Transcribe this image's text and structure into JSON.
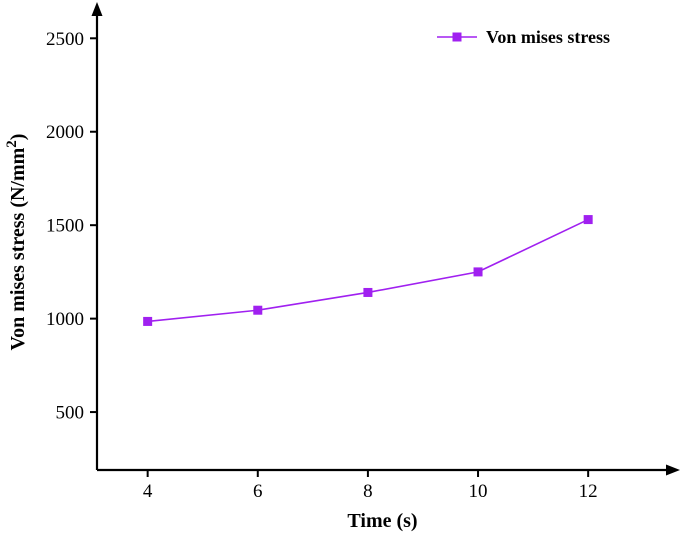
{
  "figure": {
    "background": "#ffffff",
    "title": ""
  },
  "chart_data": {
    "type": "line",
    "title": "",
    "xlabel": "Time (s)",
    "ylabel": "Von mises stress (N/mm²)",
    "x": [
      4,
      6,
      8,
      10,
      12
    ],
    "series": [
      {
        "name": "Von mises stress",
        "color": "#A020F0",
        "marker": "square",
        "values": [
          985,
          1045,
          1140,
          1250,
          1530
        ]
      }
    ],
    "x_ticks": [
      4,
      6,
      8,
      10,
      12
    ],
    "y_ticks": [
      500,
      1000,
      1500,
      2000,
      2500
    ],
    "xlim": [
      3.08,
      13.45
    ],
    "ylim": [
      190,
      2630
    ],
    "grid": false,
    "axis_color": "#000000",
    "legend": {
      "position": "top-right",
      "entries": [
        "Von mises stress"
      ]
    }
  }
}
